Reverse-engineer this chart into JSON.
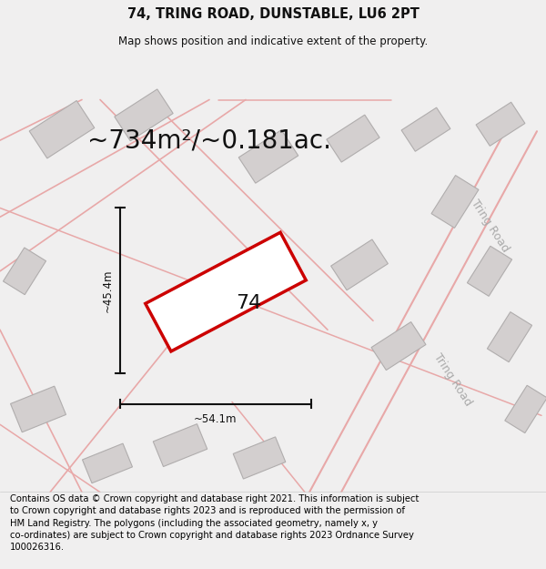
{
  "title": "74, TRING ROAD, DUNSTABLE, LU6 2PT",
  "subtitle": "Map shows position and indicative extent of the property.",
  "area_text": "~734m²/~0.181ac.",
  "width_label": "~54.1m",
  "height_label": "~45.4m",
  "house_number": "74",
  "road_label": "Tring Road",
  "footer": "Contains OS data © Crown copyright and database right 2021. This information is subject to Crown copyright and database rights 2023 and is reproduced with the permission of HM Land Registry. The polygons (including the associated geometry, namely x, y co-ordinates) are subject to Crown copyright and database rights 2023 Ordnance Survey 100026316.",
  "bg_color": "#f0efef",
  "map_bg": "#edeaea",
  "plot_fill": "#ffffff",
  "plot_edge": "#cc0000",
  "road_color": "#e8a8a8",
  "bldg_fill": "#d3cfcf",
  "bldg_edge": "#b0adad",
  "dim_color": "#111111",
  "title_fs": 10.5,
  "subtitle_fs": 8.5,
  "area_fs": 20,
  "label_fs": 8.5,
  "footer_fs": 7.2,
  "road_label_fs": 9,
  "title_color": "#111111",
  "subtitle_color": "#111111"
}
